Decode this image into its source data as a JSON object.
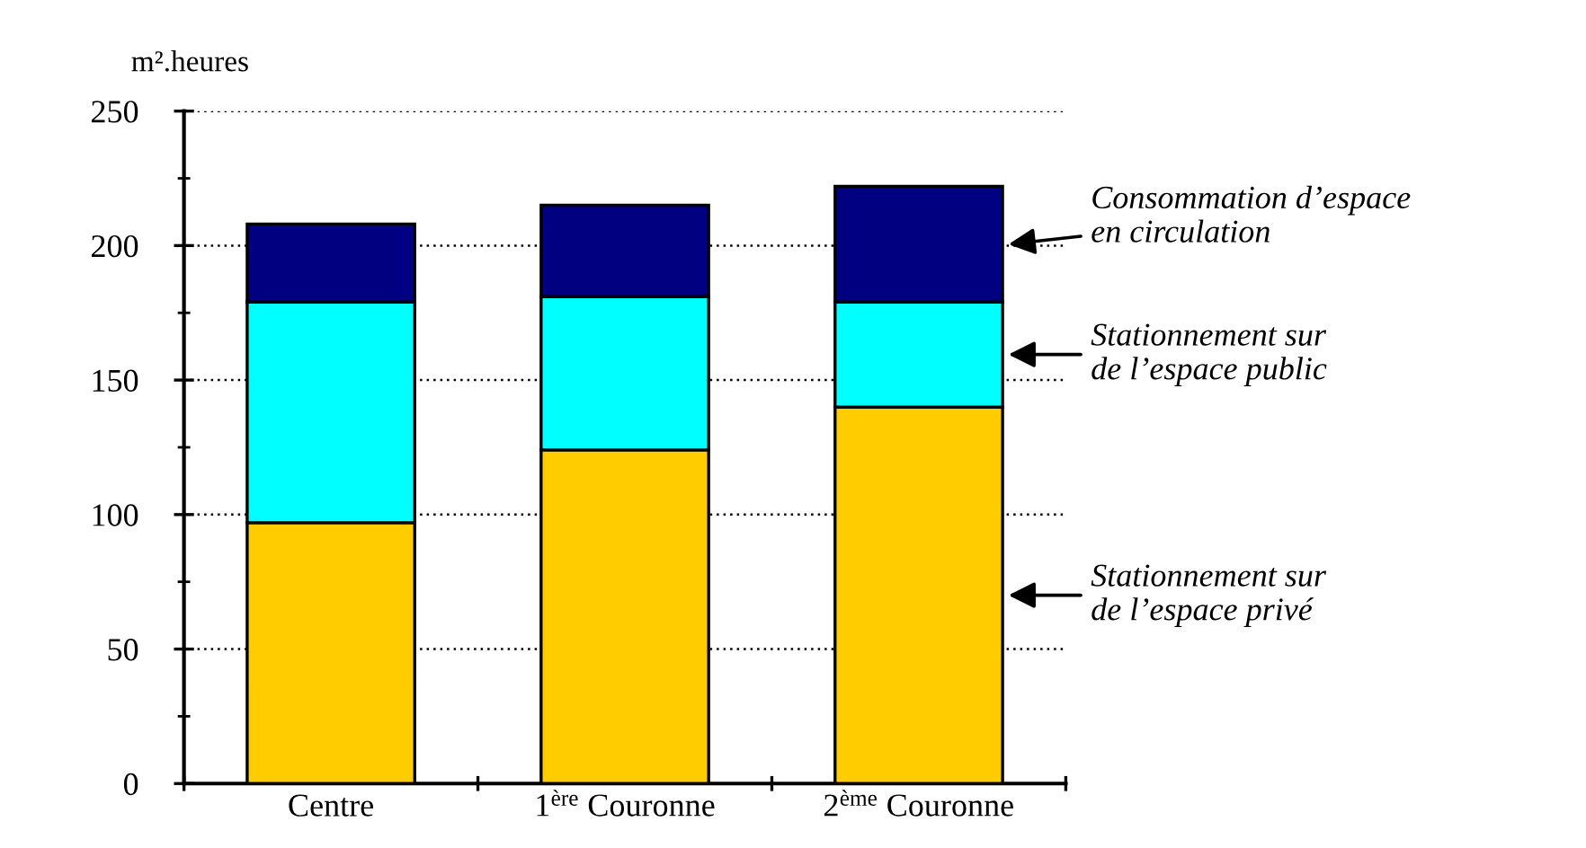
{
  "chart_data": {
    "type": "bar",
    "stacked": true,
    "ylabel": "m².heures",
    "categories": [
      "Centre",
      "1$^{ère}$ Couronne",
      "2$^{ème}$ Couronne"
    ],
    "series": [
      {
        "name": "Stationnement sur\nde l’espace privé",
        "color": "#ffcc00",
        "values": [
          97,
          124,
          140
        ]
      },
      {
        "name": "Stationnement sur\nde l’espace public",
        "color": "#00ffff",
        "values": [
          82,
          57,
          39
        ]
      },
      {
        "name": "Consommation d’espace\nen circulation",
        "color": "#000080",
        "values": [
          29,
          34,
          43
        ]
      }
    ],
    "ylim": [
      0,
      250
    ],
    "yticks": [
      0,
      50,
      100,
      150,
      200,
      250
    ],
    "grid": "y",
    "legend": "right"
  }
}
